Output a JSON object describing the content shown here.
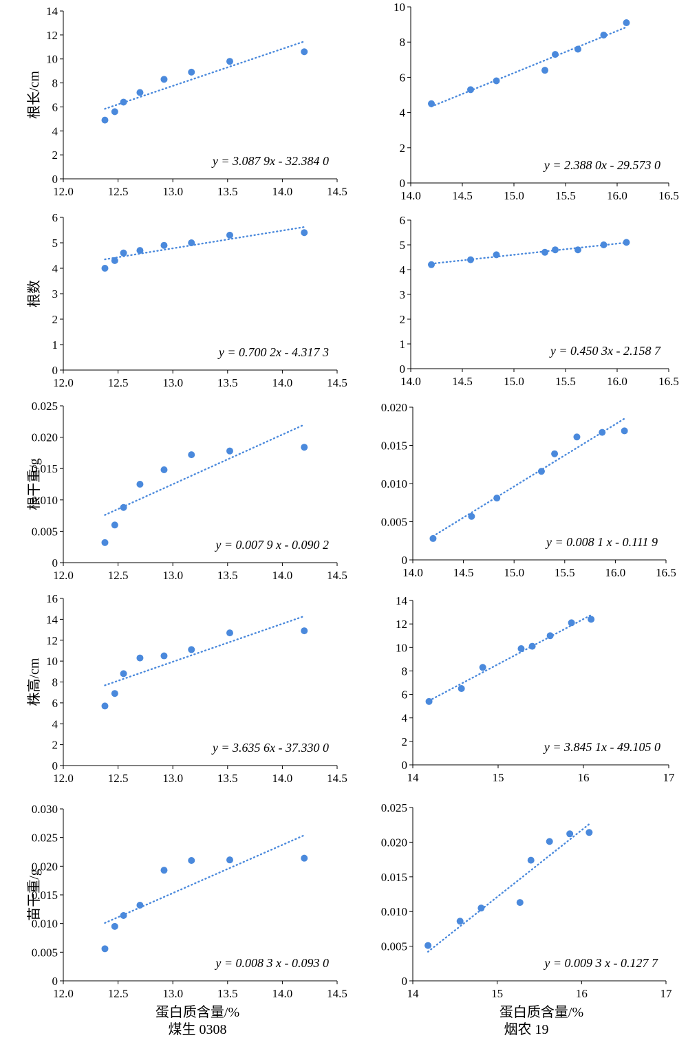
{
  "figure": {
    "left_xlabel": "蛋白质含量/%",
    "left_variety": "煤生 0308",
    "right_xlabel": "蛋白质含量/%",
    "right_variety": "烟农 19"
  },
  "chart_data": [
    {
      "type": "scatter",
      "trendline": "linear",
      "row": 0,
      "col": 0,
      "ylabel": "根长/cm",
      "equation": "y = 3.087 9x - 32.384 0",
      "xlim": [
        12.0,
        14.5
      ],
      "xticks": [
        "12.0",
        "12.5",
        "13.0",
        "13.5",
        "14.0",
        "14.5"
      ],
      "ylim": [
        0,
        14
      ],
      "yticks": [
        "0",
        "2",
        "4",
        "6",
        "8",
        "10",
        "12",
        "14"
      ],
      "points": [
        [
          12.38,
          4.9
        ],
        [
          12.47,
          5.6
        ],
        [
          12.55,
          6.4
        ],
        [
          12.7,
          7.2
        ],
        [
          12.92,
          8.3
        ],
        [
          13.17,
          8.9
        ],
        [
          13.52,
          9.8
        ],
        [
          14.2,
          10.6
        ]
      ],
      "fit": [
        [
          12.38,
          5.84
        ],
        [
          14.2,
          11.46
        ]
      ],
      "color": "#4a89dc"
    },
    {
      "type": "scatter",
      "trendline": "linear",
      "row": 0,
      "col": 1,
      "ylabel": "",
      "equation": "y = 2.388 0x - 29.573 0",
      "xlim": [
        14.0,
        16.5
      ],
      "xticks": [
        "14.0",
        "14.5",
        "15.0",
        "15.5",
        "16.0",
        "16.5"
      ],
      "ylim": [
        0,
        10
      ],
      "yticks": [
        "0",
        "2",
        "4",
        "6",
        "8",
        "10"
      ],
      "points": [
        [
          14.2,
          4.5
        ],
        [
          14.58,
          5.3
        ],
        [
          14.83,
          5.8
        ],
        [
          15.3,
          6.4
        ],
        [
          15.4,
          7.3
        ],
        [
          15.62,
          7.6
        ],
        [
          15.87,
          8.4
        ],
        [
          16.09,
          9.1
        ]
      ],
      "fit": [
        [
          14.2,
          4.34
        ],
        [
          16.09,
          8.85
        ]
      ],
      "color": "#4a89dc"
    },
    {
      "type": "scatter",
      "trendline": "linear",
      "row": 1,
      "col": 0,
      "ylabel": "根数",
      "equation": "y = 0.700 2x - 4.317 3",
      "xlim": [
        12.0,
        14.5
      ],
      "xticks": [
        "12.0",
        "12.5",
        "13.0",
        "13.5",
        "14.0",
        "14.5"
      ],
      "ylim": [
        0,
        6
      ],
      "yticks": [
        "0",
        "1",
        "2",
        "3",
        "4",
        "5",
        "6"
      ],
      "points": [
        [
          12.38,
          4.0
        ],
        [
          12.47,
          4.3
        ],
        [
          12.55,
          4.6
        ],
        [
          12.7,
          4.7
        ],
        [
          12.92,
          4.9
        ],
        [
          13.17,
          5.0
        ],
        [
          13.52,
          5.3
        ],
        [
          14.2,
          5.4
        ]
      ],
      "fit": [
        [
          12.38,
          4.35
        ],
        [
          14.2,
          5.62
        ]
      ],
      "color": "#4a89dc"
    },
    {
      "type": "scatter",
      "trendline": "linear",
      "row": 1,
      "col": 1,
      "ylabel": "",
      "equation": "y = 0.450 3x - 2.158 7",
      "xlim": [
        14.0,
        16.5
      ],
      "xticks": [
        "14.0",
        "14.5",
        "15.0",
        "15.5",
        "16.0",
        "16.5"
      ],
      "ylim": [
        0,
        6
      ],
      "yticks": [
        "0",
        "1",
        "2",
        "3",
        "4",
        "5",
        "6"
      ],
      "points": [
        [
          14.2,
          4.2
        ],
        [
          14.58,
          4.4
        ],
        [
          14.83,
          4.6
        ],
        [
          15.3,
          4.7
        ],
        [
          15.4,
          4.8
        ],
        [
          15.62,
          4.8
        ],
        [
          15.87,
          5.0
        ],
        [
          16.09,
          5.1
        ]
      ],
      "fit": [
        [
          14.2,
          4.24
        ],
        [
          16.09,
          5.09
        ]
      ],
      "color": "#4a89dc"
    },
    {
      "type": "scatter",
      "trendline": "linear",
      "row": 2,
      "col": 0,
      "ylabel": "根干重/g",
      "equation": "y = 0.007 9 x - 0.090 2",
      "xlim": [
        12.0,
        14.5
      ],
      "xticks": [
        "12.0",
        "12.5",
        "13.0",
        "13.5",
        "14.0",
        "14.5"
      ],
      "ylim": [
        0,
        0.025
      ],
      "yticks": [
        "0",
        "0.005",
        "0.010",
        "0.015",
        "0.020",
        "0.025"
      ],
      "points": [
        [
          12.38,
          0.0032
        ],
        [
          12.47,
          0.006
        ],
        [
          12.55,
          0.0088
        ],
        [
          12.7,
          0.0125
        ],
        [
          12.92,
          0.0148
        ],
        [
          13.17,
          0.0172
        ],
        [
          13.52,
          0.0178
        ],
        [
          14.2,
          0.0184
        ]
      ],
      "fit": [
        [
          12.38,
          0.0076
        ],
        [
          14.2,
          0.022
        ]
      ],
      "color": "#4a89dc"
    },
    {
      "type": "scatter",
      "trendline": "linear",
      "row": 2,
      "col": 1,
      "ylabel": "",
      "equation": "y = 0.008 1 x - 0.111 9",
      "xlim": [
        14.0,
        16.5
      ],
      "xticks": [
        "14.0",
        "14.5",
        "15.0",
        "15.5",
        "16.0",
        "16.5"
      ],
      "ylim": [
        0,
        0.02
      ],
      "yticks": [
        "0",
        "0.005",
        "0.010",
        "0.015",
        "0.020"
      ],
      "points": [
        [
          14.2,
          0.0028
        ],
        [
          14.58,
          0.0057
        ],
        [
          14.83,
          0.0081
        ],
        [
          15.27,
          0.0116
        ],
        [
          15.4,
          0.0139
        ],
        [
          15.62,
          0.0161
        ],
        [
          15.87,
          0.0167
        ],
        [
          16.09,
          0.0169
        ]
      ],
      "fit": [
        [
          14.2,
          0.0031
        ],
        [
          16.09,
          0.0185
        ]
      ],
      "color": "#4a89dc"
    },
    {
      "type": "scatter",
      "trendline": "linear",
      "row": 3,
      "col": 0,
      "ylabel": "株高/cm",
      "equation": "y = 3.635 6x - 37.330 0",
      "xlim": [
        12.0,
        14.5
      ],
      "xticks": [
        "12.0",
        "12.5",
        "13.0",
        "13.5",
        "14.0",
        "14.5"
      ],
      "ylim": [
        0,
        16
      ],
      "yticks": [
        "0",
        "2",
        "4",
        "6",
        "8",
        "10",
        "12",
        "14",
        "16"
      ],
      "points": [
        [
          12.38,
          5.7
        ],
        [
          12.47,
          6.9
        ],
        [
          12.55,
          8.8
        ],
        [
          12.7,
          10.3
        ],
        [
          12.92,
          10.5
        ],
        [
          13.17,
          11.1
        ],
        [
          13.52,
          12.7
        ],
        [
          14.2,
          12.9
        ]
      ],
      "fit": [
        [
          12.38,
          7.68
        ],
        [
          14.2,
          14.3
        ]
      ],
      "color": "#4a89dc"
    },
    {
      "type": "scatter",
      "trendline": "linear",
      "row": 3,
      "col": 1,
      "ylabel": "",
      "equation": "y = 3.845 1x - 49.105 0",
      "xlim": [
        14,
        17
      ],
      "xticks": [
        "14",
        "15",
        "16",
        "17"
      ],
      "ylim": [
        0,
        14
      ],
      "yticks": [
        "0",
        "2",
        "4",
        "6",
        "8",
        "10",
        "12",
        "14"
      ],
      "points": [
        [
          14.19,
          5.4
        ],
        [
          14.57,
          6.5
        ],
        [
          14.82,
          8.3
        ],
        [
          15.27,
          9.9
        ],
        [
          15.4,
          10.1
        ],
        [
          15.61,
          11.0
        ],
        [
          15.86,
          12.1
        ],
        [
          16.09,
          12.4
        ]
      ],
      "fit": [
        [
          14.19,
          5.46
        ],
        [
          16.09,
          12.76
        ]
      ],
      "color": "#4a89dc"
    },
    {
      "type": "scatter",
      "trendline": "linear",
      "row": 4,
      "col": 0,
      "ylabel": "苗干重/g",
      "equation": "y = 0.008 3 x - 0.093 0",
      "xlim": [
        12.0,
        14.5
      ],
      "xticks": [
        "12.0",
        "12.5",
        "13.0",
        "13.5",
        "14.0",
        "14.5"
      ],
      "ylim": [
        0,
        0.03
      ],
      "yticks": [
        "0",
        "0.005",
        "0.010",
        "0.015",
        "0.020",
        "0.025",
        "0.030"
      ],
      "points": [
        [
          12.38,
          0.0056
        ],
        [
          12.47,
          0.0095
        ],
        [
          12.55,
          0.0114
        ],
        [
          12.7,
          0.0132
        ],
        [
          12.92,
          0.0193
        ],
        [
          13.17,
          0.021
        ],
        [
          13.52,
          0.0211
        ],
        [
          14.2,
          0.0214
        ]
      ],
      "fit": [
        [
          12.38,
          0.0101
        ],
        [
          14.2,
          0.0254
        ]
      ],
      "color": "#4a89dc"
    },
    {
      "type": "scatter",
      "trendline": "linear",
      "row": 4,
      "col": 1,
      "ylabel": "",
      "equation": "y = 0.009 3 x - 0.127 7",
      "xlim": [
        14,
        17
      ],
      "xticks": [
        "14",
        "15",
        "16",
        "17"
      ],
      "ylim": [
        0,
        0.025
      ],
      "yticks": [
        "0",
        "0.005",
        "0.010",
        "0.015",
        "0.020",
        "0.025"
      ],
      "points": [
        [
          14.18,
          0.0051
        ],
        [
          14.56,
          0.0086
        ],
        [
          14.81,
          0.0105
        ],
        [
          15.27,
          0.0113
        ],
        [
          15.4,
          0.0174
        ],
        [
          15.62,
          0.0201
        ],
        [
          15.86,
          0.0212
        ],
        [
          16.09,
          0.0214
        ]
      ],
      "fit": [
        [
          14.18,
          0.0042
        ],
        [
          16.09,
          0.0226
        ]
      ],
      "color": "#4a89dc"
    }
  ]
}
